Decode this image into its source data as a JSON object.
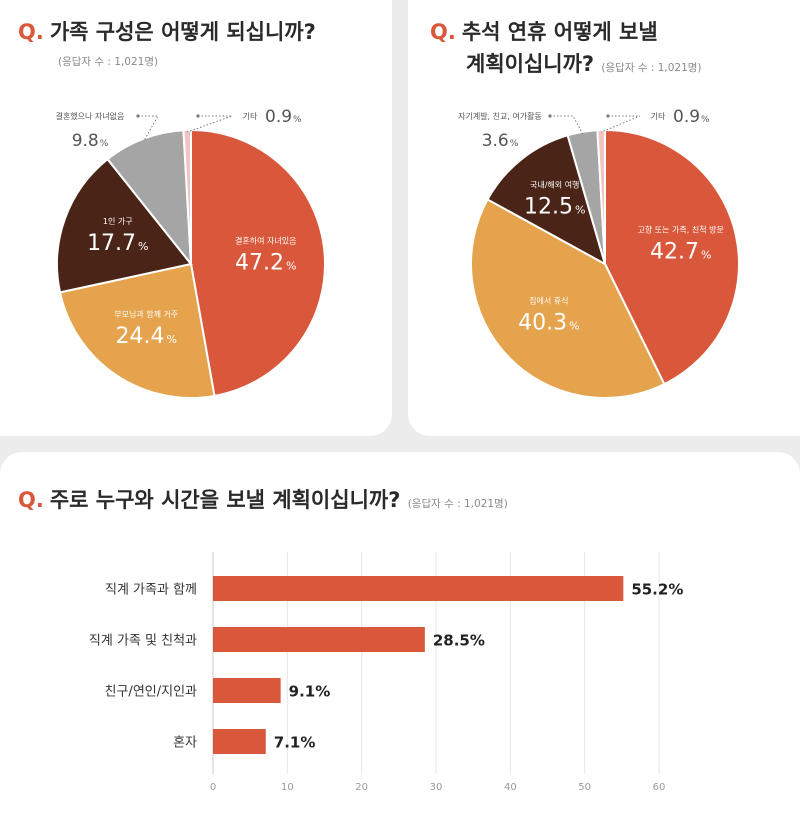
{
  "colors": {
    "accent": "#d9583c",
    "orange": "#d9583c",
    "gold": "#e4a34c",
    "brown": "#4a2517",
    "gray": "#a5a5a5",
    "pink": "#f2c3c3"
  },
  "chart_data": [
    {
      "type": "pie",
      "id": "family",
      "q_mark": "Q.",
      "title": "가족 구성은 어떻게 되십니까?",
      "respondents": "(응답자 수 : 1,021명)",
      "slices": [
        {
          "label": "결혼하여 자녀있음",
          "value": 47.2,
          "value_text": "47.2",
          "unit": "%",
          "color": "#d9583c"
        },
        {
          "label": "부모님과 함께 거주",
          "value": 24.4,
          "value_text": "24.4",
          "unit": "%",
          "color": "#e4a34c"
        },
        {
          "label": "1인 가구",
          "value": 17.7,
          "value_text": "17.7",
          "unit": "%",
          "color": "#4a2517"
        },
        {
          "label": "결혼했으나 자녀없음",
          "value": 9.8,
          "value_text": "9.8",
          "unit": "%",
          "color": "#a5a5a5"
        },
        {
          "label": "기타",
          "value": 0.9,
          "value_text": "0.9",
          "unit": "%",
          "color": "#f2c3c3"
        }
      ]
    },
    {
      "type": "pie",
      "id": "holiday",
      "q_mark": "Q.",
      "title_line1": "추석 연휴 어떻게 보낼",
      "title_line2": "계획이십니까?",
      "respondents": "(응답자 수 : 1,021명)",
      "slices": [
        {
          "label": "고향 또는 가족, 친척 방문",
          "value": 42.7,
          "value_text": "42.7",
          "unit": "%",
          "color": "#d9583c"
        },
        {
          "label": "집에서 휴식",
          "value": 40.3,
          "value_text": "40.3",
          "unit": "%",
          "color": "#e4a34c"
        },
        {
          "label": "국내/해외 여행",
          "value": 12.5,
          "value_text": "12.5",
          "unit": "%",
          "color": "#4a2517"
        },
        {
          "label": "자기계발, 친교, 여가활동",
          "value": 3.6,
          "value_text": "3.6",
          "unit": "%",
          "color": "#a5a5a5"
        },
        {
          "label": "기타",
          "value": 0.9,
          "value_text": "0.9",
          "unit": "%",
          "color": "#f2c3c3"
        }
      ]
    },
    {
      "type": "bar",
      "orientation": "horizontal",
      "id": "company",
      "q_mark": "Q.",
      "title": "주로 누구와 시간을 보낼 계획이십니까?",
      "respondents": "(응답자 수 : 1,021명)",
      "categories": [
        "직계 가족과 함께",
        "직계 가족 및 친척과",
        "친구/연인/지인과",
        "혼자"
      ],
      "values": [
        55.2,
        28.5,
        9.1,
        7.1
      ],
      "value_labels": [
        "55.2%",
        "28.5%",
        "9.1%",
        "7.1%"
      ],
      "xlim": [
        0,
        60
      ],
      "xticks": [
        "0",
        "10",
        "20",
        "30",
        "40",
        "50",
        "60"
      ],
      "grid": true,
      "color": "#d9583c"
    }
  ]
}
